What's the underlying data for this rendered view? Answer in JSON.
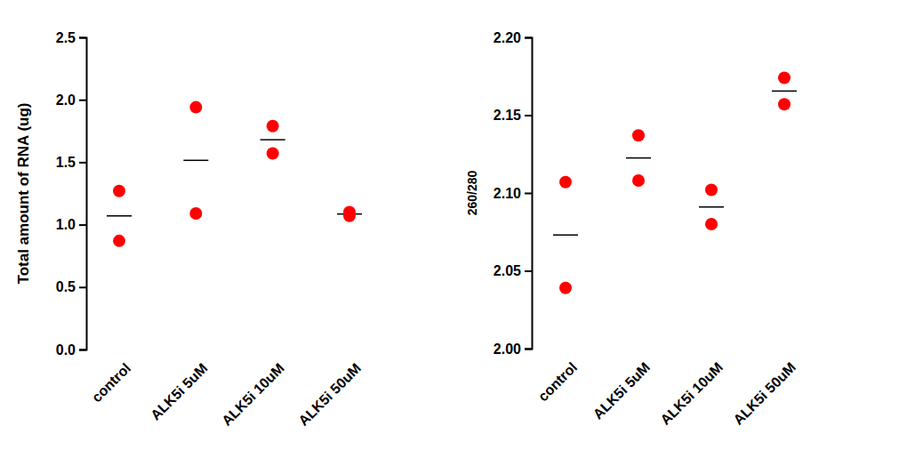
{
  "chart_data": [
    {
      "type": "scatter",
      "y_label": "Total amount of RNA (ug)",
      "categories": [
        "control",
        "ALK5i 5uM",
        "ALK5i 10uM",
        "ALK5i 50uM"
      ],
      "points": [
        [
          1.27,
          0.87
        ],
        [
          1.94,
          1.09
        ],
        [
          1.79,
          1.57
        ],
        [
          1.07,
          1.1
        ]
      ],
      "means": [
        1.07,
        1.515,
        1.68,
        1.085
      ],
      "color": "#ff0000",
      "marker": "circle",
      "ylim": [
        0,
        2.5
      ],
      "yticks": [
        {
          "value": 0,
          "label": "0.0"
        },
        {
          "value": 0.5,
          "label": "0.5"
        },
        {
          "value": 1,
          "label": "1.0"
        },
        {
          "value": 1.5,
          "label": "1.5"
        },
        {
          "value": 2,
          "label": "2.0"
        },
        {
          "value": 2.5,
          "label": "2.5"
        }
      ]
    },
    {
      "type": "scatter",
      "y_label": "260/280",
      "categories": [
        "control",
        "ALK5i 5uM",
        "ALK5i 10uM",
        "ALK5i 50uM"
      ],
      "points": [
        [
          2.107,
          2.039
        ],
        [
          2.137,
          2.108
        ],
        [
          2.102,
          2.08
        ],
        [
          2.174,
          2.157
        ]
      ],
      "means": [
        2.073,
        2.1225,
        2.091,
        2.1655
      ],
      "color": "#ff0000",
      "marker": "circle",
      "ylim": [
        2.0,
        2.2
      ],
      "yticks": [
        {
          "value": 2.0,
          "label": "2.00"
        },
        {
          "value": 2.05,
          "label": "2.05"
        },
        {
          "value": 2.1,
          "label": "2.10"
        },
        {
          "value": 2.15,
          "label": "2.15"
        },
        {
          "value": 2.2,
          "label": "2.20"
        }
      ]
    }
  ]
}
